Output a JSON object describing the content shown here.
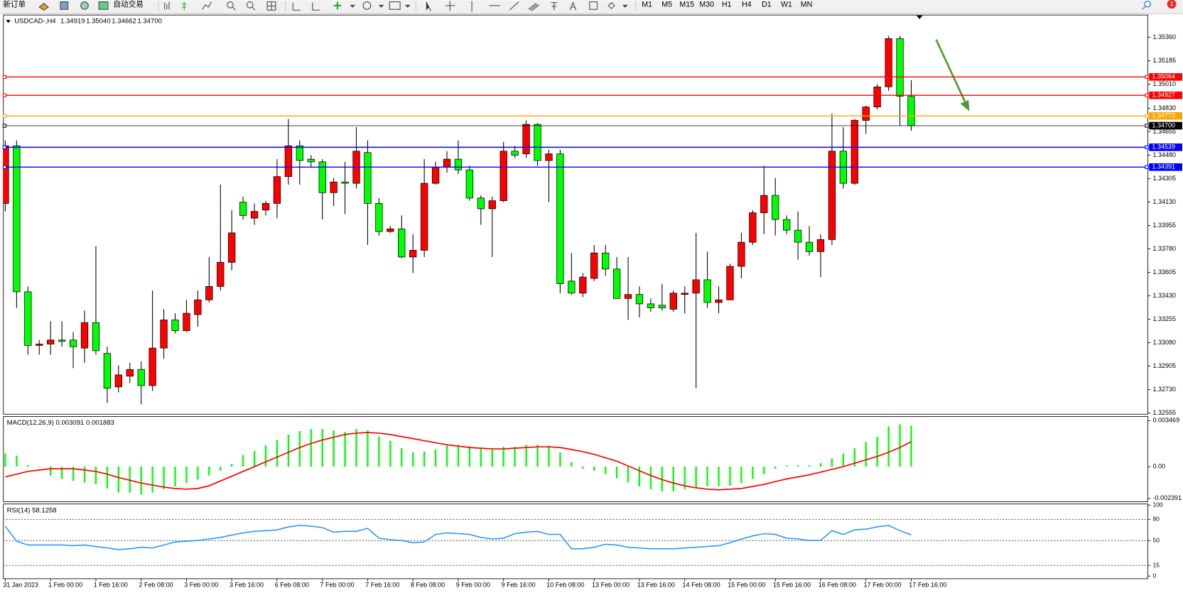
{
  "toolbar": {
    "new_order": "新订单",
    "auto_trade": "自动交易",
    "timeframes": [
      "M1",
      "M5",
      "M15",
      "M30",
      "H1",
      "H4",
      "D1",
      "W1",
      "MN"
    ],
    "notifications": "1"
  },
  "chart_data": [
    {
      "type": "candlestick",
      "title": "USDCAD-,H4",
      "ohlc_labels": [
        "1.34919",
        "1.35040",
        "1.34662",
        "1.34700"
      ],
      "bull_color": "#ff0000",
      "bear_color": "#00ff00",
      "categories": [
        "31 Jan 2023",
        null,
        null,
        null,
        "1 Feb 00:00",
        null,
        null,
        null,
        "1 Feb 16:00",
        null,
        null,
        null,
        "2 Feb 08:00",
        null,
        null,
        null,
        "3 Feb 00:00",
        null,
        null,
        null,
        "3 Feb 16:00",
        null,
        null,
        null,
        "6 Feb 08:00",
        null,
        null,
        null,
        "7 Feb 00:00",
        null,
        null,
        null,
        "7 Feb 16:00",
        null,
        null,
        null,
        "8 Feb 08:00",
        null,
        null,
        null,
        "9 Feb 00:00",
        null,
        null,
        null,
        "9 Feb 16:00",
        null,
        null,
        null,
        "10 Feb 08:00",
        null,
        null,
        null,
        "13 Feb 00:00",
        null,
        null,
        null,
        "13 Feb 16:00",
        null,
        null,
        null,
        "14 Feb 08:00",
        null,
        null,
        null,
        "15 Feb 00:00",
        null,
        null,
        null,
        "15 Feb 16:00",
        null,
        null,
        null,
        "16 Feb 08:00",
        null,
        null,
        null,
        "17 Feb 00:00",
        null,
        null,
        null,
        "17 Feb 16:00"
      ],
      "open": [
        1.3412,
        1.3455,
        1.3346,
        1.3306,
        1.3307,
        1.331,
        1.331,
        1.3304,
        1.3323,
        1.33,
        1.3275,
        1.3283,
        1.3288,
        1.3276,
        1.3304,
        1.3325,
        1.3317,
        1.3329,
        1.334,
        1.335,
        1.3368,
        1.3413,
        1.3401,
        1.3407,
        1.3412,
        1.3432,
        1.3455,
        1.3445,
        1.3443,
        1.342,
        1.3428,
        1.3427,
        1.345,
        1.3412,
        1.3391,
        1.3393,
        1.3372,
        1.3377,
        1.3427,
        1.3439,
        1.3445,
        1.3437,
        1.3416,
        1.3408,
        1.3414,
        1.3451,
        1.3449,
        1.3471,
        1.3444,
        1.3449,
        1.3354,
        1.3345,
        1.3356,
        1.3375,
        1.3363,
        1.3341,
        1.3344,
        1.3337,
        1.3336,
        1.3333,
        1.3344,
        1.3345,
        1.3355,
        1.3338,
        1.334,
        1.3365,
        1.3383,
        1.3405,
        1.3418,
        1.34,
        1.3392,
        1.3383,
        1.3376,
        1.3385,
        1.3451,
        1.3427,
        1.3474,
        1.3484,
        1.3499,
        1.3535,
        1.34919
      ],
      "high": [
        1.3459,
        1.3459,
        1.335,
        1.331,
        1.3324,
        1.3324,
        1.3316,
        1.3332,
        1.338,
        1.3305,
        1.3291,
        1.3293,
        1.3294,
        1.3347,
        1.3333,
        1.333,
        1.334,
        1.3347,
        1.3372,
        1.3426,
        1.3407,
        1.3417,
        1.3412,
        1.3414,
        1.3445,
        1.3475,
        1.3459,
        1.3448,
        1.3445,
        1.3431,
        1.3443,
        1.3469,
        1.3459,
        1.3416,
        1.3395,
        1.3403,
        1.3389,
        1.3445,
        1.3443,
        1.3451,
        1.3459,
        1.344,
        1.3418,
        1.3417,
        1.3458,
        1.3455,
        1.3474,
        1.3472,
        1.3452,
        1.3452,
        1.3375,
        1.336,
        1.3381,
        1.3381,
        1.3372,
        1.3372,
        1.335,
        1.3341,
        1.3352,
        1.3347,
        1.335,
        1.339,
        1.3376,
        1.335,
        1.3367,
        1.339,
        1.3407,
        1.344,
        1.3431,
        1.3403,
        1.3406,
        1.3395,
        1.3389,
        1.3479,
        1.3469,
        1.3475,
        1.3485,
        1.3501,
        1.3537,
        1.3537,
        1.3504
      ],
      "low": [
        1.3406,
        1.3334,
        1.3299,
        1.3299,
        1.3299,
        1.3305,
        1.3289,
        1.3293,
        1.3299,
        1.3263,
        1.3271,
        1.3278,
        1.3262,
        1.3272,
        1.3296,
        1.3315,
        1.3316,
        1.332,
        1.3338,
        1.3347,
        1.3362,
        1.34,
        1.3396,
        1.3403,
        1.3401,
        1.3426,
        1.3426,
        1.3439,
        1.34,
        1.341,
        1.3404,
        1.3423,
        1.3381,
        1.3388,
        1.339,
        1.3371,
        1.336,
        1.3372,
        1.3426,
        1.3435,
        1.3434,
        1.3414,
        1.3396,
        1.3372,
        1.3413,
        1.3446,
        1.3446,
        1.344,
        1.3413,
        1.3345,
        1.3344,
        1.3342,
        1.3354,
        1.3358,
        1.3341,
        1.3325,
        1.3327,
        1.3331,
        1.3332,
        1.3331,
        1.333,
        1.3274,
        1.3334,
        1.333,
        1.334,
        1.3356,
        1.3381,
        1.3389,
        1.3388,
        1.3389,
        1.337,
        1.3373,
        1.3357,
        1.3381,
        1.3423,
        1.3426,
        1.3464,
        1.3482,
        1.3496,
        1.347,
        1.34662
      ],
      "close": [
        1.3455,
        1.3346,
        1.3306,
        1.3307,
        1.331,
        1.3309,
        1.3305,
        1.3323,
        1.3302,
        1.3274,
        1.3284,
        1.3288,
        1.3276,
        1.3304,
        1.3325,
        1.3317,
        1.333,
        1.334,
        1.335,
        1.3368,
        1.339,
        1.3403,
        1.3406,
        1.3412,
        1.3432,
        1.3455,
        1.3444,
        1.3443,
        1.342,
        1.3428,
        1.3427,
        1.3451,
        1.3412,
        1.3391,
        1.3393,
        1.3372,
        1.3377,
        1.3427,
        1.3439,
        1.3445,
        1.3437,
        1.3416,
        1.3408,
        1.3414,
        1.3451,
        1.3448,
        1.3471,
        1.3444,
        1.3449,
        1.3352,
        1.3345,
        1.3357,
        1.3375,
        1.3363,
        1.3341,
        1.3344,
        1.3337,
        1.3334,
        1.3334,
        1.3345,
        1.3345,
        1.3355,
        1.3338,
        1.334,
        1.3365,
        1.3383,
        1.3405,
        1.3418,
        1.34,
        1.3392,
        1.3383,
        1.3376,
        1.3385,
        1.3451,
        1.3427,
        1.3474,
        1.3484,
        1.3499,
        1.3535,
        1.3492,
        1.347
      ],
      "ylim": [
        1.32549,
        1.35529
      ],
      "yticks": [
        {
          "value": 1.3536,
          "label": "1.35360"
        },
        1.35185,
        {
          "value": 1.3501,
          "label": "1.35010"
        },
        {
          "value": 1.3483,
          "label": "1.34830"
        },
        1.34655,
        {
          "value": 1.3448,
          "label": "1.34480"
        },
        1.34305,
        {
          "value": 1.3413,
          "label": "1.34130"
        },
        1.33955,
        {
          "value": 1.3378,
          "label": "1.33780"
        },
        1.33605,
        {
          "value": 1.3343,
          "label": "1.33430"
        },
        1.33255,
        {
          "value": 1.3308,
          "label": "1.33080"
        },
        1.32905,
        {
          "value": 1.3273,
          "label": "1.32730"
        },
        1.32555
      ],
      "hlines": [
        {
          "value": 1.35064,
          "color": "#ff0000"
        },
        {
          "value": 1.34927,
          "color": "#ff0000"
        },
        {
          "value": 1.34773,
          "color": "#ffa500"
        },
        {
          "value": 1.347,
          "label": "1.34700",
          "color": "#000000"
        },
        {
          "value": 1.34539,
          "color": "#0000ff"
        },
        {
          "value": 1.34391,
          "color": "#0000ff"
        }
      ]
    },
    {
      "type": "macd",
      "title": "MACD(12,26,9) 0.003091 0.001883",
      "color": "#00ff00",
      "signal_color": "#ff0000",
      "values": [
        0.000979,
        0.000824,
        0.000103,
        -5.2e-05,
        -0.00067,
        -0.000927,
        -0.001082,
        -0.001185,
        -0.001339,
        -0.001648,
        -0.001957,
        -0.001957,
        -0.002112,
        -0.001957,
        -0.0017,
        -0.001494,
        -0.001236,
        -0.000979,
        -0.00067,
        -0.000309,
        0.000206,
        0.000876,
        0.001185,
        0.001597,
        0.002009,
        0.002421,
        0.002678,
        0.002833,
        0.002833,
        0.00273,
        0.002627,
        0.002833,
        0.00273,
        0.002266,
        0.001957,
        0.001391,
        0.001082,
        0.001133,
        0.001288,
        0.001597,
        0.001648,
        0.001545,
        0.001339,
        0.001288,
        0.001494,
        0.001494,
        0.001648,
        0.001648,
        0.001597,
        0.001082,
        0.000361,
        -0.000155,
        -0.000309,
        -0.000567,
        -0.000876,
        -0.001185,
        -0.001494,
        -0.0017,
        -0.001854,
        -0.001854,
        -0.0017,
        -0.001545,
        -0.001494,
        -0.001494,
        -0.001442,
        -0.001236,
        -0.000927,
        -0.000567,
        -0.000155,
        0.000103,
        0.000103,
        0.000103,
        0.000258,
        0.000618,
        0.000979,
        0.001391,
        0.001854,
        0.002266,
        0.003039,
        0.003193,
        0.003091
      ],
      "signal": [
        -0.000773,
        -0.000567,
        -0.000361,
        -0.000258,
        -0.000155,
        -0.000155,
        -0.000155,
        -0.000258,
        -0.000361,
        -0.000567,
        -0.000824,
        -0.00103,
        -0.001236,
        -0.001391,
        -0.001545,
        -0.001648,
        -0.0017,
        -0.001648,
        -0.001442,
        -0.001082,
        -0.000721,
        -0.000361,
        0,
        0.000361,
        0.000721,
        0.001082,
        0.001442,
        0.001751,
        0.002009,
        0.002215,
        0.002421,
        0.002524,
        0.002575,
        0.002524,
        0.002421,
        0.002266,
        0.002112,
        0.001957,
        0.001803,
        0.001648,
        0.001545,
        0.001442,
        0.001391,
        0.001339,
        0.001339,
        0.001391,
        0.001442,
        0.001494,
        0.001494,
        0.001442,
        0.001288,
        0.001133,
        0.000927,
        0.00067,
        0.000412,
        5.2e-05,
        -0.000309,
        -0.00067,
        -0.000979,
        -0.001236,
        -0.001442,
        -0.001597,
        -0.0017,
        -0.001751,
        -0.0017,
        -0.001648,
        -0.001494,
        -0.001339,
        -0.001133,
        -0.000927,
        -0.000773,
        -0.000618,
        -0.000412,
        -0.000206,
        0,
        0.000258,
        0.000515,
        0.000773,
        0.001082,
        0.001442,
        0.001883
      ],
      "ylim": [
        -0.002391,
        0.003469
      ],
      "yticks": [
        0.003469,
        {
          "value": 0,
          "label": "0.00"
        },
        -0.002391
      ]
    },
    {
      "type": "rsi",
      "title": "RSI(14) 58.1258",
      "color": "#1e90ff",
      "values": [
        70.4,
        49.1,
        43.8,
        43.8,
        43.8,
        43.8,
        42.8,
        43.8,
        41.7,
        39.6,
        37.4,
        38.5,
        40.6,
        39.6,
        43.8,
        48.1,
        49.1,
        50.2,
        52.3,
        54.5,
        57.7,
        60.9,
        63.0,
        64.0,
        65.1,
        69.4,
        71.5,
        70.4,
        68.3,
        61.9,
        63.0,
        63.0,
        67.2,
        53.4,
        51.3,
        50.2,
        47.0,
        48.1,
        58.7,
        60.9,
        59.8,
        58.7,
        54.5,
        52.3,
        53.4,
        59.8,
        61.9,
        63.0,
        58.7,
        58.7,
        38.5,
        38.5,
        40.6,
        44.9,
        43.8,
        40.6,
        39.6,
        38.5,
        38.5,
        38.5,
        39.6,
        40.6,
        41.7,
        42.8,
        47.0,
        52.3,
        56.6,
        59.8,
        58.7,
        53.4,
        52.3,
        50.2,
        50.2,
        64.0,
        58.7,
        65.1,
        66.2,
        69.4,
        71.5,
        64.0,
        58.1258
      ],
      "levels": [
        80,
        50,
        15
      ],
      "ylim": [
        0,
        100
      ],
      "yticks": [
        100,
        80,
        50,
        15,
        0
      ]
    }
  ]
}
